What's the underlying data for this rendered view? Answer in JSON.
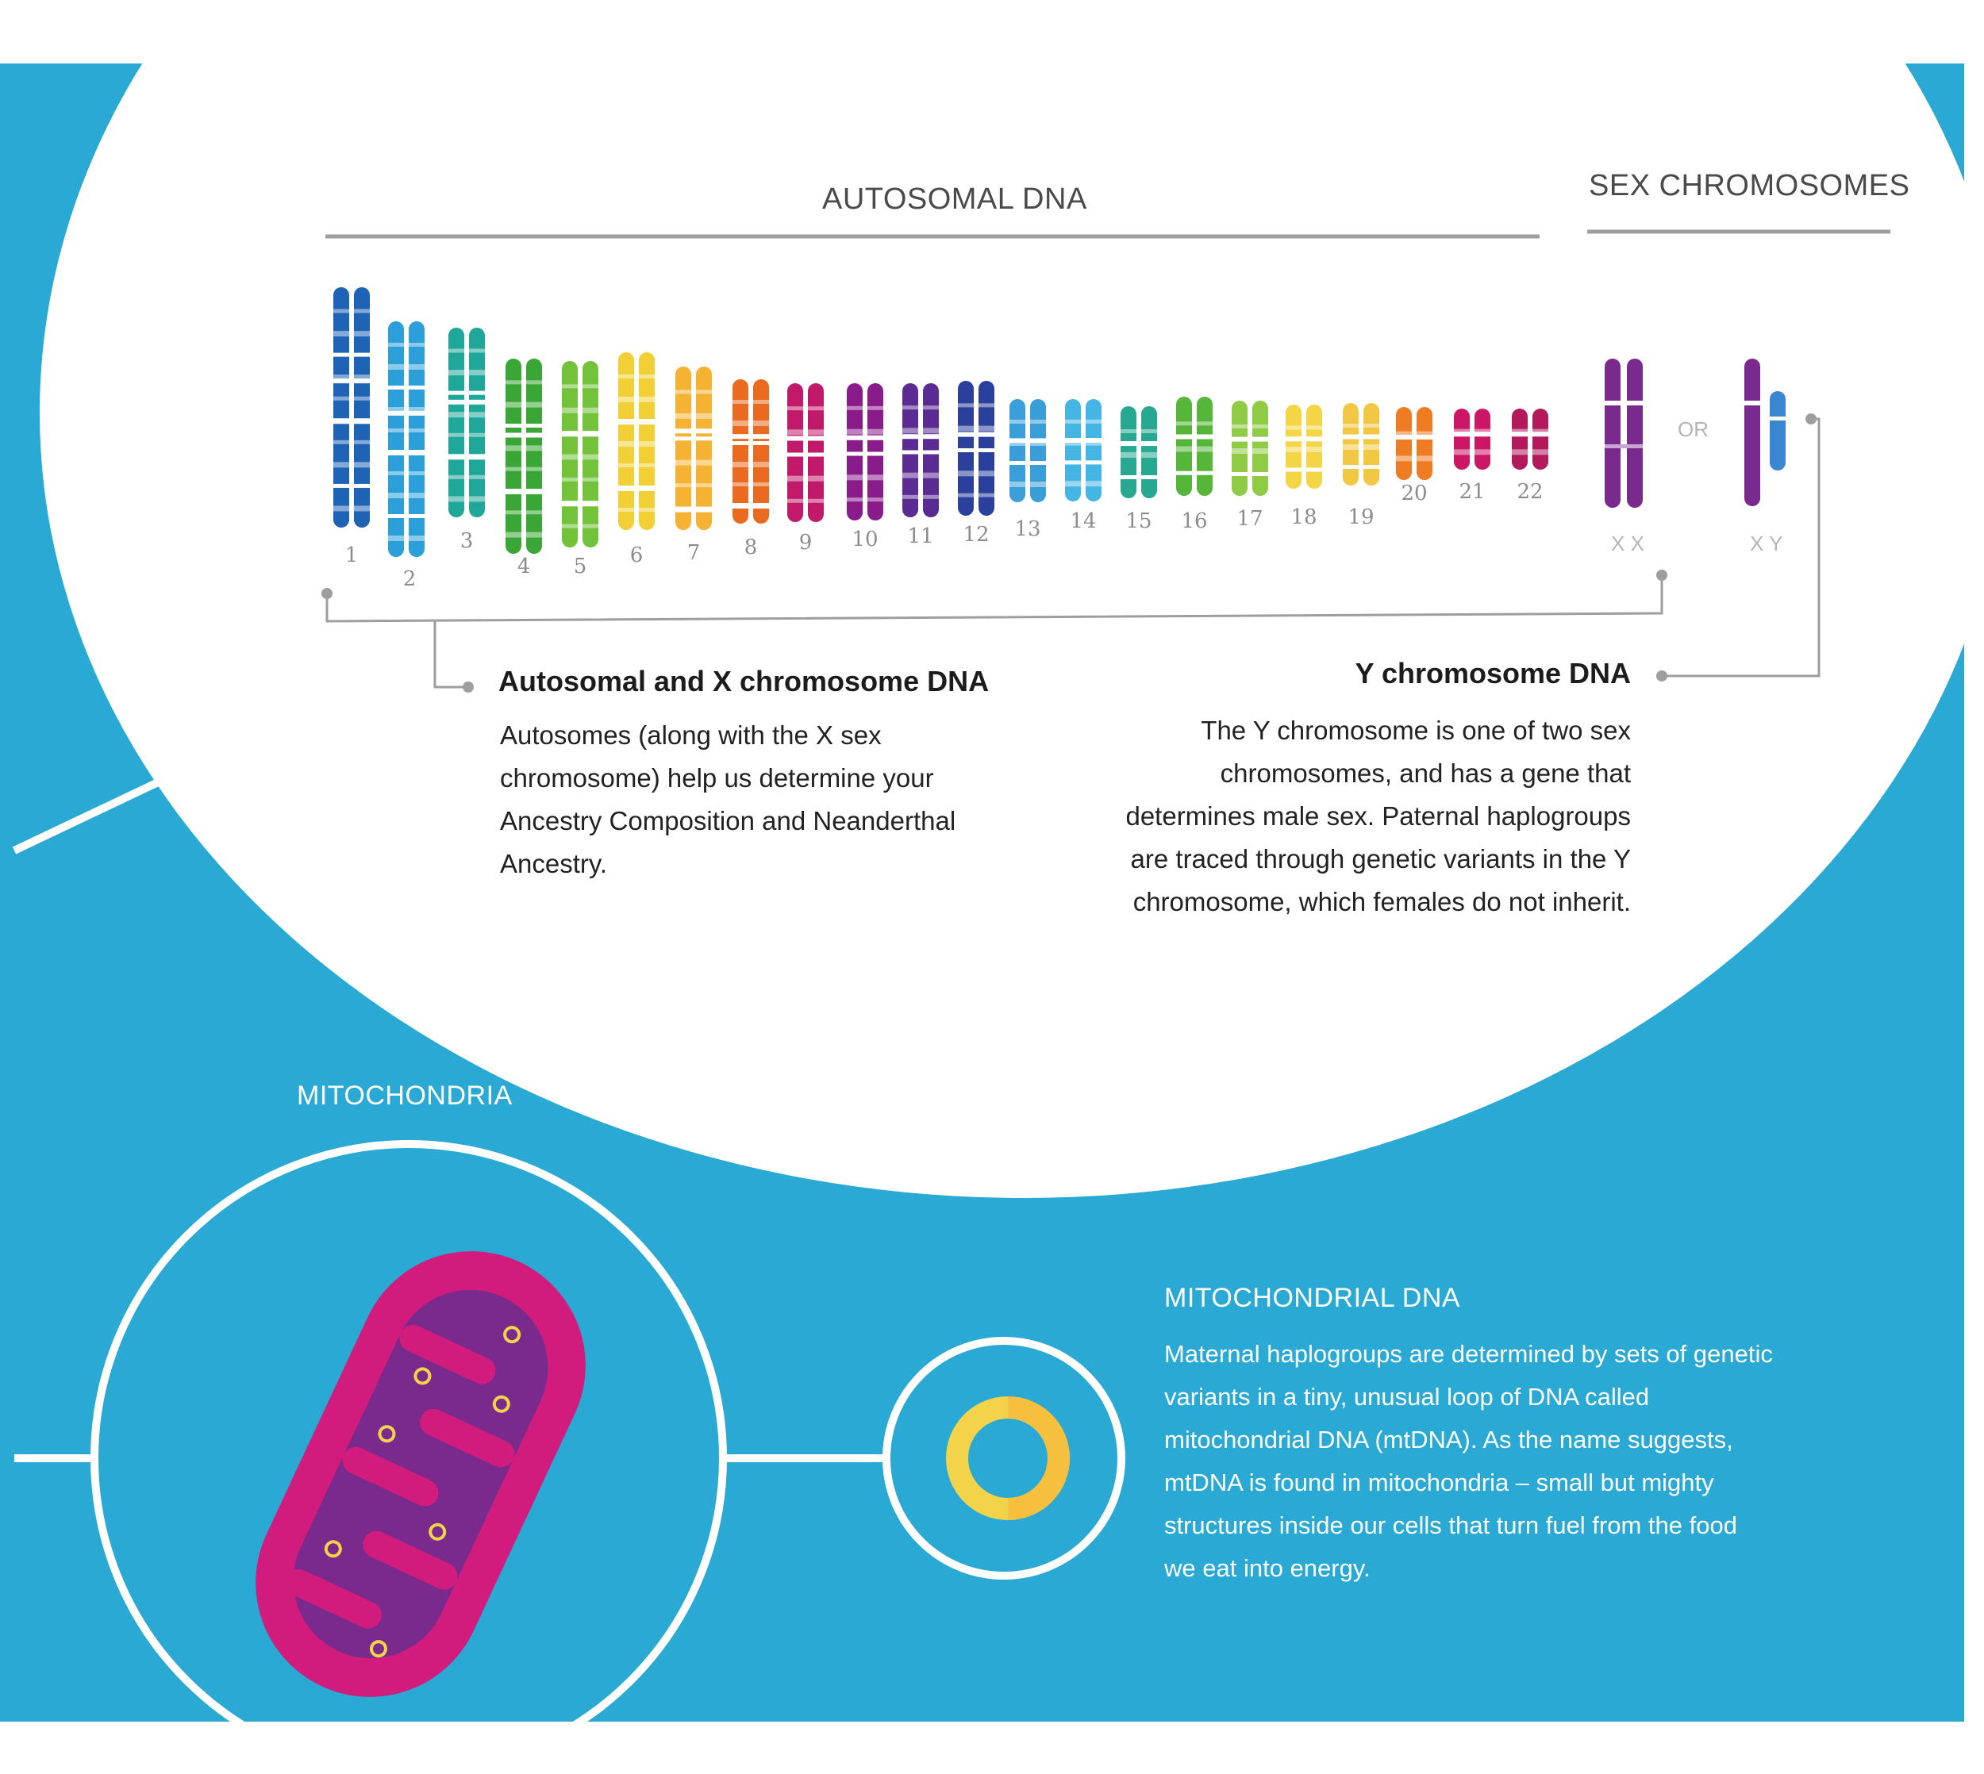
{
  "autosomal_title": "AUTOSOMAL DNA",
  "sex_title": "SEX CHROMOSOMES",
  "chromosome_numbers": [
    "1",
    "2",
    "3",
    "4",
    "5",
    "6",
    "7",
    "8",
    "9",
    "10",
    "11",
    "12",
    "13",
    "14",
    "15",
    "16",
    "17",
    "18",
    "19",
    "20",
    "21",
    "22"
  ],
  "or_label": "OR",
  "xx_label": "X X",
  "xy_label": "X Y",
  "autosomal_heading": "Autosomal and X chromosome DNA",
  "autosomal_body": [
    "Autosomes (along with the X sex",
    "chromosome) help us determine your",
    "Ancestry Composition and Neanderthal",
    "Ancestry."
  ],
  "y_heading": "Y chromosome DNA",
  "y_body": [
    "The Y chromosome is one of two sex",
    "chromosomes, and has a gene that",
    "determines male sex. Paternal haplogroups",
    "are traced through genetic variants in the Y",
    "chromosome, which females do not inherit."
  ],
  "mito_label": "MITOCHONDRIA",
  "mtdna_heading": "MITOCHONDRIAL DNA",
  "mtdna_body": [
    "Maternal haplogroups are determined by sets of genetic",
    "variants in a tiny, unusual loop of DNA called",
    "mitochondrial DNA (mtDNA). As the name suggests,",
    "mtDNA is found in mitochondria – small but mighty",
    "structures inside our cells that turn fuel from the food",
    "we eat into energy."
  ],
  "colors": {
    "background_blue": "#29a9d3",
    "mito_outer": "#d21c7d",
    "mito_inner": "#7a2a8c",
    "ring_yellow": "#f3d34a",
    "chromosomes": [
      "#1f63b5",
      "#2a9fd9",
      "#1fa79a",
      "#3aa635",
      "#72c23a",
      "#f2cf35",
      "#f5b233",
      "#ea6b1f",
      "#c21a6a",
      "#8a1b8a",
      "#5a2b92",
      "#2b3f9c",
      "#3a9fd9",
      "#45b6e3",
      "#27a890",
      "#55b63a",
      "#8fcb45",
      "#f4d545",
      "#f2c744",
      "#ef7b22",
      "#cc1766",
      "#b3195b"
    ]
  }
}
